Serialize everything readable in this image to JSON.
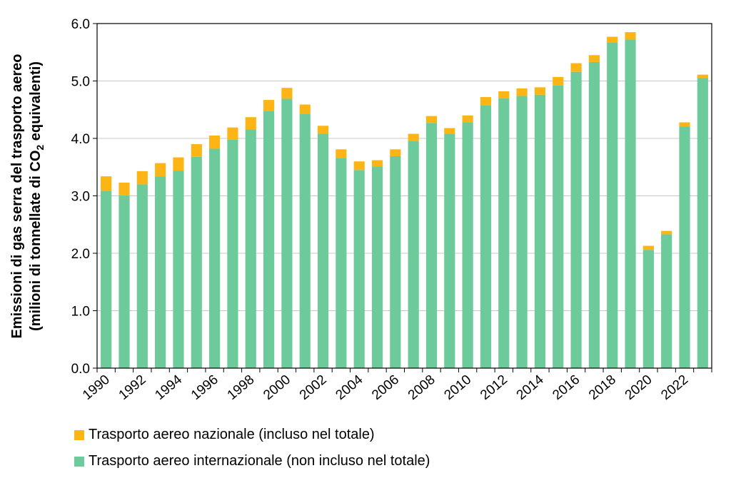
{
  "chart_data": {
    "type": "bar",
    "stacked": true,
    "title": "",
    "xlabel": "",
    "ylabel_line1": "Emissioni di gas serra del trasporto aereo",
    "ylabel_line2_prefix": "(milioni di tonnellate di CO",
    "ylabel_line2_sub": "2",
    "ylabel_line2_suffix": " equivalenti)",
    "ylim": [
      0,
      6
    ],
    "yticks": [
      "0.0",
      "1.0",
      "2.0",
      "3.0",
      "4.0",
      "5.0",
      "6.0"
    ],
    "grid": true,
    "categories": [
      1990,
      1991,
      1992,
      1993,
      1994,
      1995,
      1996,
      1997,
      1998,
      1999,
      2000,
      2001,
      2002,
      2003,
      2004,
      2005,
      2006,
      2007,
      2008,
      2009,
      2010,
      2011,
      2012,
      2013,
      2014,
      2015,
      2016,
      2017,
      2018,
      2019,
      2020,
      2021,
      2022,
      2023
    ],
    "xtick_labels": [
      "1990",
      "1992",
      "1994",
      "1996",
      "1998",
      "2000",
      "2002",
      "2004",
      "2006",
      "2008",
      "2010",
      "2012",
      "2014",
      "2016",
      "2018",
      "2020",
      "2022"
    ],
    "series": [
      {
        "name": "Trasporto aereo internazionale (non incluso nel totale)",
        "color": "#6dcb9b",
        "values": [
          3.09,
          3.01,
          3.2,
          3.34,
          3.44,
          3.68,
          3.82,
          3.98,
          4.16,
          4.48,
          4.69,
          4.43,
          4.08,
          3.66,
          3.45,
          3.51,
          3.69,
          3.95,
          4.27,
          4.08,
          4.28,
          4.58,
          4.7,
          4.74,
          4.76,
          4.92,
          5.16,
          5.33,
          5.67,
          5.72,
          2.06,
          2.33,
          4.21,
          5.05
        ]
      },
      {
        "name": "Trasporto aereo nazionale (incluso nel totale)",
        "color": "#fcb514",
        "values": [
          0.25,
          0.22,
          0.23,
          0.23,
          0.23,
          0.22,
          0.23,
          0.21,
          0.21,
          0.19,
          0.19,
          0.16,
          0.14,
          0.15,
          0.15,
          0.11,
          0.12,
          0.13,
          0.12,
          0.1,
          0.12,
          0.14,
          0.12,
          0.13,
          0.13,
          0.15,
          0.15,
          0.12,
          0.1,
          0.13,
          0.07,
          0.06,
          0.07,
          0.06
        ]
      }
    ],
    "legend": [
      {
        "label": "Trasporto aereo nazionale (incluso nel totale)",
        "color": "#fcb514"
      },
      {
        "label": "Trasporto aereo internazionale (non incluso nel totale)",
        "color": "#6dcb9b"
      }
    ]
  }
}
